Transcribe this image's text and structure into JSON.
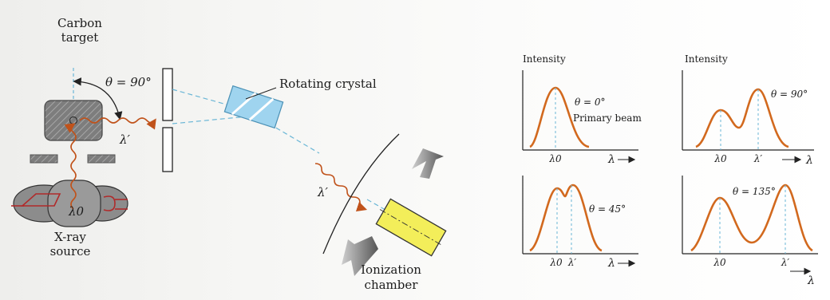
{
  "apparatus": {
    "carbon_target_line1": "Carbon",
    "carbon_target_line2": "target",
    "angle_label": "θ = 90°",
    "rotating_crystal": "Rotating crystal",
    "scattered_wavelength_1": "λ′",
    "scattered_wavelength_2": "λ′",
    "source_wavelength": "λ0",
    "xray_source_line1": "X-ray",
    "xray_source_line2": "source",
    "ionization_line1": "Ionization",
    "ionization_line2": "chamber"
  },
  "graphs": {
    "panel_tl": {
      "ylabel": "Intensity",
      "theta": "θ = 0°",
      "note": "Primary beam",
      "tick1": "λ0",
      "xlabel": "λ"
    },
    "panel_tr": {
      "ylabel": "Intensity",
      "theta": "θ = 90°",
      "tick1": "λ0",
      "tick2": "λ′",
      "xlabel": "λ"
    },
    "panel_bl": {
      "theta": "θ = 45°",
      "tick1": "λ0",
      "tick2": "λ′",
      "xlabel": "λ"
    },
    "panel_br": {
      "theta": "θ = 135°",
      "tick1": "λ0",
      "tick2": "λ′",
      "xlabel": "λ"
    }
  },
  "colors": {
    "curve": "#d2691e",
    "beam": "#c0521a",
    "guide": "#6ab6d6",
    "crystal": "#9fd4ef",
    "chamber": "#f3ee5a",
    "target": "#8a8a8a"
  }
}
